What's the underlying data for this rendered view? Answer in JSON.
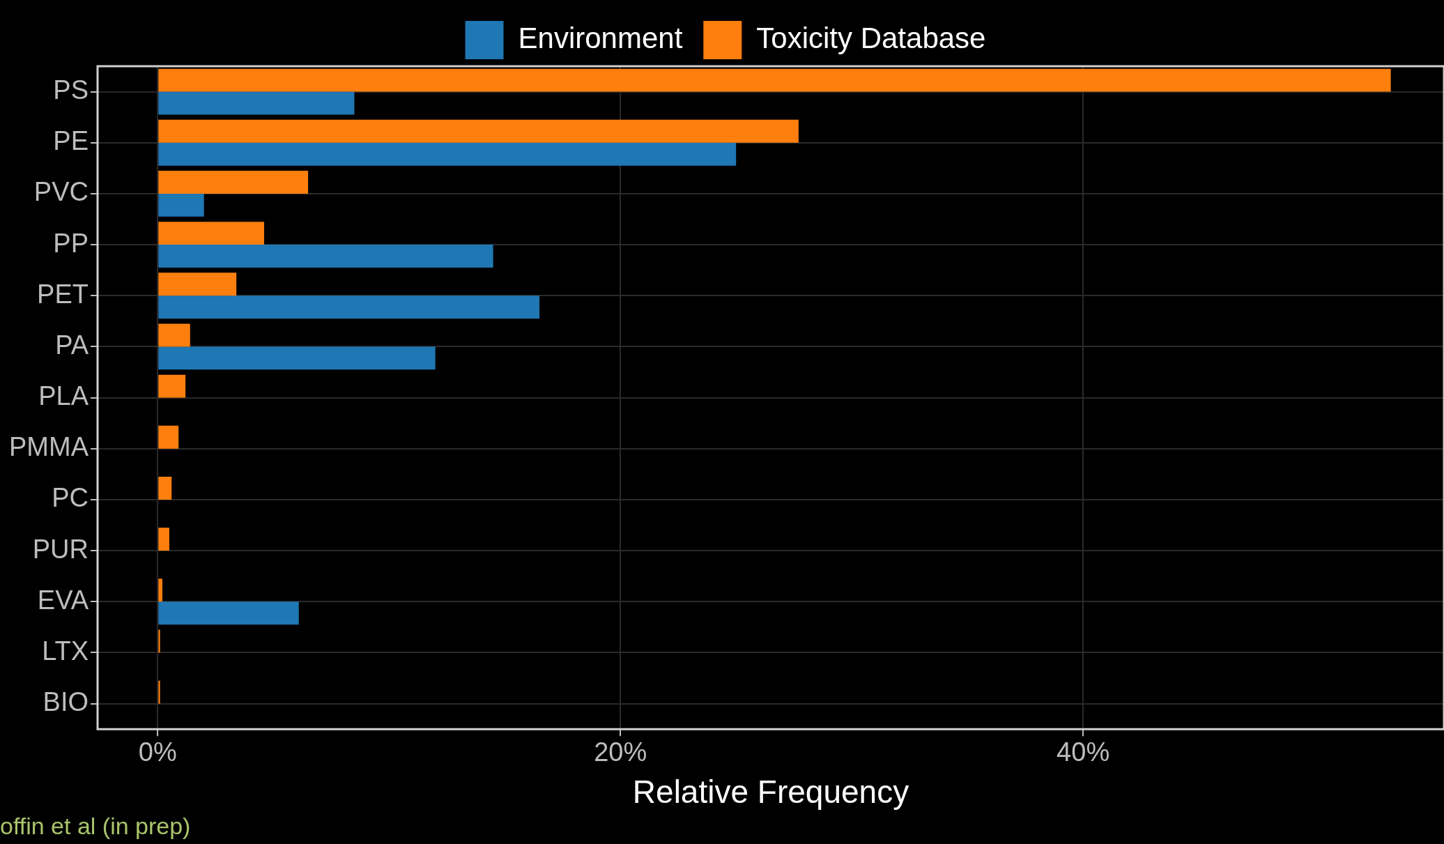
{
  "chart_data": {
    "type": "bar",
    "orientation": "horizontal",
    "xlabel": "Relative Frequency",
    "categories": [
      "PS",
      "PE",
      "PVC",
      "PP",
      "PET",
      "PA",
      "PLA",
      "PMMA",
      "PC",
      "PUR",
      "EVA",
      "LTX",
      "BIO"
    ],
    "series": [
      {
        "name": "Environment",
        "color": "#1f77b4",
        "values": [
          8.5,
          25.0,
          2.0,
          14.5,
          16.5,
          12.0,
          0,
          0,
          0,
          0,
          6.1,
          0,
          0
        ]
      },
      {
        "name": "Toxicity Database",
        "color": "#ff7f0e",
        "values": [
          53.3,
          27.7,
          6.5,
          4.6,
          3.4,
          1.4,
          1.2,
          0.9,
          0.6,
          0.5,
          0.2,
          0.1,
          0.1
        ]
      }
    ],
    "xlim": [
      -2.6,
      55.6
    ],
    "xticks": [
      {
        "value": 0,
        "label": "0%"
      },
      {
        "value": 20,
        "label": "20%"
      },
      {
        "value": 40,
        "label": "40%"
      }
    ],
    "grid": true,
    "legend": "top",
    "annotations": [
      "offin et al (in prep)"
    ]
  }
}
